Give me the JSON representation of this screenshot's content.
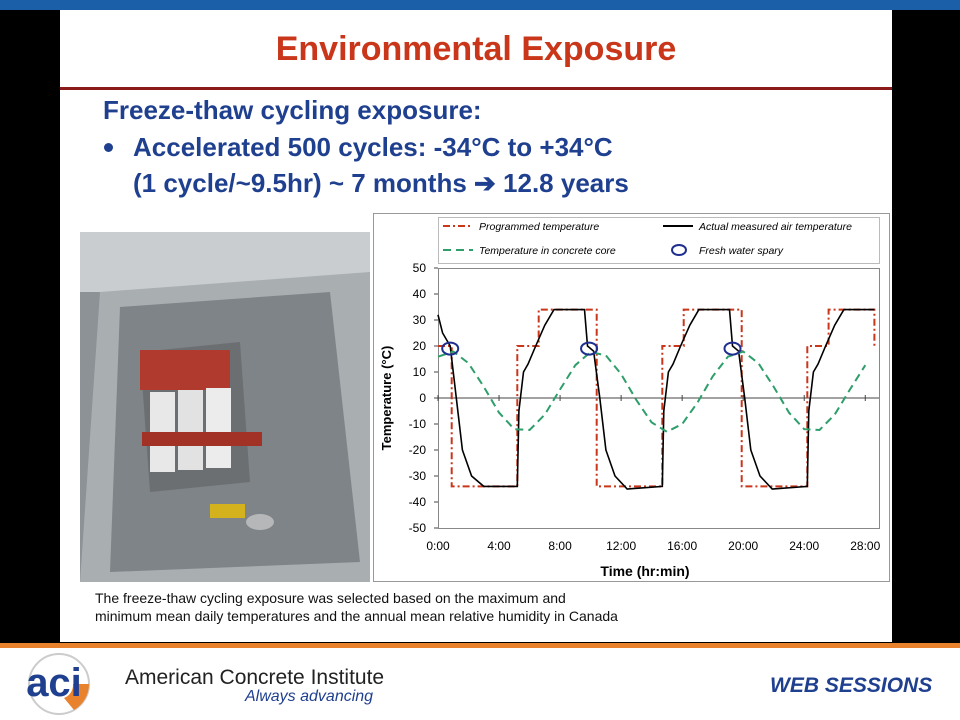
{
  "slide": {
    "title": "Environmental Exposure",
    "heading": "Freeze-thaw cycling exposure:",
    "bullet_lines": [
      "Accelerated 500 cycles: -34°C to +34°C",
      "(1 cycle/~9.5hr) ~ 7 months ➔ 12.8 years"
    ],
    "caption": [
      "The freeze-thaw cycling exposure was selected based on the maximum and",
      "minimum mean daily temperatures and the annual mean relative humidity in Canada"
    ]
  },
  "footer": {
    "logo": "aci",
    "org": "American Concrete Institute",
    "tagline": "Always advancing",
    "label": "WEB SESSIONS"
  },
  "chart_data": {
    "type": "line",
    "x_label": "Time (hr:min)",
    "y_label": "Temperature (°C)",
    "xlim": [
      0,
      28.9
    ],
    "ylim": [
      -50,
      50
    ],
    "xticks": [
      {
        "value": 0,
        "label": "0:00"
      },
      {
        "value": 4,
        "label": "4:00"
      },
      {
        "value": 8,
        "label": "8:00"
      },
      {
        "value": 12,
        "label": "12:00"
      },
      {
        "value": 16,
        "label": "16:00"
      },
      {
        "value": 20,
        "label": "20:00"
      },
      {
        "value": 24,
        "label": "24:00"
      },
      {
        "value": 28,
        "label": "28:00"
      }
    ],
    "yticks": [
      -50,
      -40,
      -30,
      -20,
      -10,
      0,
      10,
      20,
      30,
      40,
      50
    ],
    "grid": false,
    "series": [
      {
        "name": "Programmed temperature",
        "color": "#c9361a",
        "style": "dashdot",
        "x": [
          0,
          0.9,
          0.9,
          5.2,
          5.2,
          6.6,
          6.6,
          10.4,
          10.4,
          14.7,
          14.7,
          16.1,
          16.1,
          19.9,
          19.9,
          24.2,
          24.2,
          25.6,
          25.6,
          28.6,
          28.6
        ],
        "values": [
          20,
          20,
          -34,
          -34,
          20,
          20,
          34,
          34,
          -34,
          -34,
          20,
          20,
          34,
          34,
          -34,
          -34,
          20,
          20,
          34,
          34,
          20
        ]
      },
      {
        "name": "Actual measured air temperature",
        "color": "#000000",
        "style": "solid",
        "x": [
          0,
          0.3,
          0.8,
          1.2,
          1.6,
          2.2,
          3,
          5.2,
          5.3,
          5.6,
          5.9,
          6.4,
          7,
          7.6,
          9.6,
          9.8,
          10.2,
          10.6,
          11,
          11.6,
          12.4,
          14.7,
          14.8,
          15.1,
          15.4,
          15.9,
          16.5,
          17.1,
          19.1,
          19.3,
          19.7,
          20.1,
          20.5,
          21.1,
          21.9,
          24.2,
          24.3,
          24.6,
          24.9,
          25.4,
          26,
          26.6,
          28.6
        ],
        "values": [
          32,
          25,
          20,
          0,
          -20,
          -30,
          -34,
          -34,
          -5,
          10,
          13,
          20,
          28,
          34,
          34,
          20,
          18,
          0,
          -20,
          -30,
          -35,
          -34,
          -5,
          10,
          13,
          20,
          28,
          34,
          34,
          20,
          18,
          0,
          -20,
          -30,
          -35,
          -34,
          -5,
          10,
          13,
          20,
          28,
          34,
          34
        ]
      },
      {
        "name": "Temperature in concrete core",
        "color": "#2e9e6a",
        "style": "dashed",
        "x": [
          0,
          1,
          2,
          3,
          4,
          5,
          6,
          7,
          8,
          9,
          10,
          11,
          12,
          13,
          14,
          15,
          16,
          17,
          18,
          19,
          20,
          21,
          22,
          23,
          24,
          25,
          26,
          27,
          28
        ],
        "values": [
          15.9,
          17.9,
          13.4,
          4.3,
          -5.6,
          -12.0,
          -12.3,
          -6.4,
          3.3,
          12.6,
          17.7,
          16.4,
          9.2,
          -0.8,
          -9.4,
          -13.0,
          -10.0,
          -1.8,
          8.3,
          15.9,
          17.9,
          13.4,
          4.3,
          -5.6,
          -12.0,
          -12.3,
          -6.4,
          3.3,
          12.6
        ]
      },
      {
        "name": "Fresh water spary",
        "color": "#1f2f8f",
        "style": "circle",
        "x": [
          0.8,
          9.9,
          19.3
        ],
        "values": [
          19,
          19,
          19
        ]
      }
    ]
  }
}
